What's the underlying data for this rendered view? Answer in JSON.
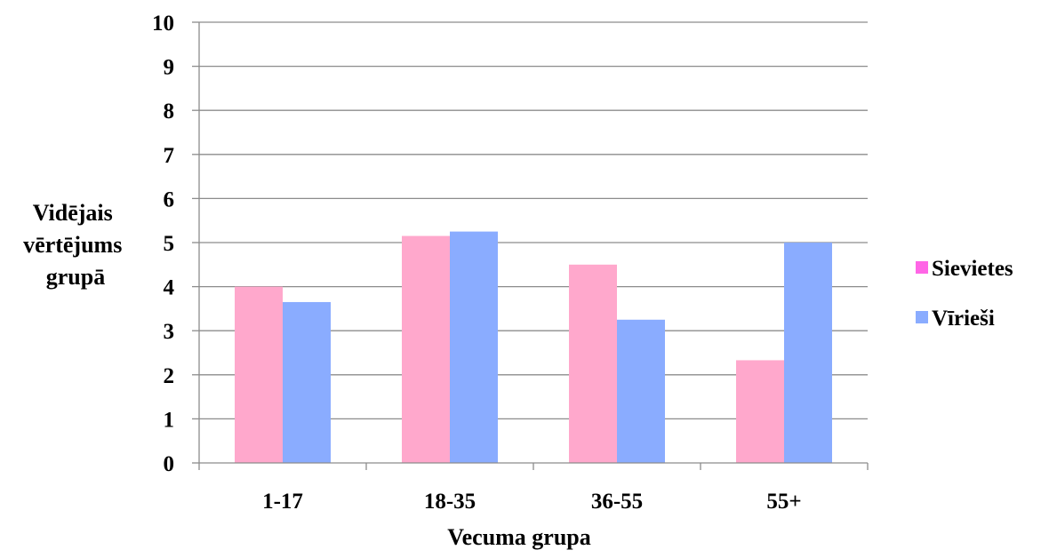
{
  "chart_data": {
    "type": "bar",
    "categories": [
      "1-17",
      "18-35",
      "36-55",
      "55+"
    ],
    "series": [
      {
        "name": "Sievietes",
        "color": "#FFA8CC",
        "values": [
          4.0,
          5.15,
          4.5,
          2.33
        ]
      },
      {
        "name": "Vīrieši",
        "color": "#8AACFF",
        "values": [
          3.65,
          5.25,
          3.25,
          5.0
        ]
      }
    ],
    "xlabel": "Vecuma grupa",
    "ylabel_lines": [
      "Vidējais",
      "vērtējums",
      "grupā"
    ],
    "ylim": [
      0,
      10
    ],
    "yticks": [
      "0",
      "1",
      "2",
      "3",
      "4",
      "5",
      "6",
      "7",
      "8",
      "9",
      "10"
    ],
    "grid": true,
    "legend_position": "right",
    "legend_swatch_colors": [
      "#FF66E6",
      "#8AACFF"
    ]
  }
}
